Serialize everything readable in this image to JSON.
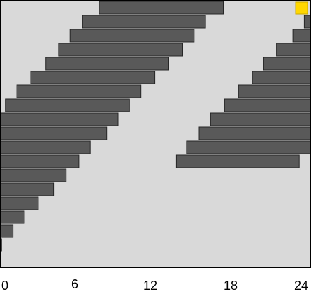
{
  "chart_data": {
    "type": "bar",
    "orientation": "horizontal",
    "grid": false,
    "xlim": [
      0,
      24.5
    ],
    "x_ticks": [
      "0",
      "6",
      "12",
      "18",
      "24"
    ],
    "x_tick_values": [
      0,
      6,
      12,
      18,
      24
    ],
    "rows": 19,
    "series": [
      {
        "bars": [
          {
            "row": 0,
            "start": 7.8,
            "end": 17.6
          },
          {
            "row": 1,
            "start": 6.5,
            "end": 16.2
          },
          {
            "row": 2,
            "start": 5.5,
            "end": 15.3
          },
          {
            "row": 3,
            "start": 4.6,
            "end": 14.4
          },
          {
            "row": 4,
            "start": 3.6,
            "end": 13.3
          },
          {
            "row": 5,
            "start": 2.4,
            "end": 12.2
          },
          {
            "row": 6,
            "start": 1.3,
            "end": 11.1
          },
          {
            "row": 7,
            "start": 0.4,
            "end": 10.2
          },
          {
            "row": 8,
            "start": 0,
            "end": 9.3
          },
          {
            "row": 9,
            "start": 0,
            "end": 8.4
          },
          {
            "row": 10,
            "start": 0,
            "end": 7.1
          },
          {
            "row": 11,
            "start": 0,
            "end": 6.2
          },
          {
            "row": 12,
            "start": 0,
            "end": 5.2
          },
          {
            "row": 13,
            "start": 0,
            "end": 4.2
          },
          {
            "row": 14,
            "start": 0,
            "end": 3.0
          },
          {
            "row": 15,
            "start": 0,
            "end": 1.9
          },
          {
            "row": 16,
            "start": 0,
            "end": 1.0
          },
          {
            "row": 17,
            "start": 0,
            "end": 0.1
          },
          {
            "row": 1,
            "start": 24.0,
            "end": 24.5
          },
          {
            "row": 2,
            "start": 23.1,
            "end": 24.5
          },
          {
            "row": 3,
            "start": 21.8,
            "end": 24.5
          },
          {
            "row": 4,
            "start": 20.8,
            "end": 24.5
          },
          {
            "row": 5,
            "start": 19.9,
            "end": 24.5
          },
          {
            "row": 6,
            "start": 18.8,
            "end": 24.5
          },
          {
            "row": 7,
            "start": 17.7,
            "end": 24.5
          },
          {
            "row": 8,
            "start": 16.6,
            "end": 24.5
          },
          {
            "row": 9,
            "start": 15.7,
            "end": 24.5
          },
          {
            "row": 10,
            "start": 14.7,
            "end": 24.5
          },
          {
            "row": 11,
            "start": 13.9,
            "end": 23.6
          }
        ]
      }
    ],
    "row_offset_note": "",
    "legend": {
      "position": "top-right",
      "color": "#FFD700"
    },
    "colors": {
      "background": "#D9D9D9",
      "bar": "#595959",
      "bar_edge": "#262626",
      "axis": "#000000"
    }
  }
}
